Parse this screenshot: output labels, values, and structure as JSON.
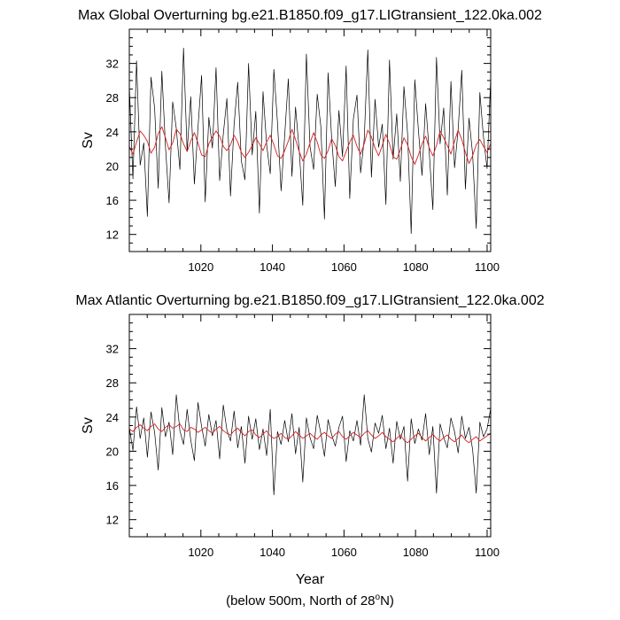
{
  "chart_data": [
    {
      "type": "line",
      "title": "Max Global Overturning bg.e21.B1850.f09_g17.LIGtransient_122.0ka.002",
      "ylabel": "Sv",
      "xlabel": "",
      "xlim": [
        1000,
        1101
      ],
      "ylim": [
        10,
        36
      ],
      "xticks": [
        1020,
        1040,
        1060,
        1080,
        1100
      ],
      "yticks": [
        12,
        16,
        20,
        24,
        28,
        32
      ],
      "x_start": 1000,
      "x_end": 1101,
      "series": [
        {
          "name": "annual",
          "color": "#000000",
          "values": [
            29.4,
            18.5,
            32.3,
            20.1,
            22.7,
            14.1,
            30.4,
            26.8,
            17.4,
            31.1,
            22.3,
            15.7,
            27.5,
            24.4,
            19.6,
            33.8,
            21.7,
            28.1,
            17.9,
            24.5,
            30.6,
            15.8,
            25.7,
            22.1,
            31.5,
            18.3,
            23.7,
            27.9,
            16.5,
            24.9,
            29.8,
            20.6,
            18.4,
            32.0,
            21.3,
            26.4,
            14.5,
            28.7,
            22.5,
            19.1,
            31.3,
            25.1,
            17.1,
            23.6,
            30.2,
            18.8,
            26.9,
            21.9,
            15.4,
            33.1,
            22.3,
            19.6,
            28.4,
            24.6,
            13.8,
            30.9,
            23.2,
            17.6,
            26.5,
            21.1,
            31.7,
            16.2,
            25.5,
            28.3,
            19.2,
            23.1,
            33.6,
            18.7,
            27.8,
            22.2,
            24.9,
            15.5,
            32.4,
            20.8,
            26.1,
            18.2,
            29.3,
            23.8,
            12.1,
            30.1,
            24.2,
            18.9,
            27.3,
            21.6,
            14.9,
            32.7,
            22.6,
            26.8,
            16.6,
            29.9,
            19.8,
            24.3,
            31.2,
            17.3,
            25.6,
            21.4,
            12.7,
            28.6,
            23.4,
            19.7,
            30.3
          ]
        },
        {
          "name": "smoothed",
          "color": "#d62020",
          "values": [
            22.3,
            21.4,
            22.8,
            24.1,
            23.6,
            22.9,
            21.5,
            22.2,
            23.8,
            24.6,
            23.3,
            21.9,
            22.7,
            24.3,
            23.8,
            22.6,
            21.7,
            22.9,
            23.9,
            22.7,
            21.3,
            21.1,
            22.6,
            23.4,
            24.1,
            23.5,
            22.3,
            21.8,
            22.5,
            23.6,
            22.8,
            21.6,
            21.0,
            21.6,
            22.4,
            23.3,
            22.6,
            21.8,
            22.8,
            23.6,
            22.5,
            21.2,
            20.9,
            21.8,
            22.9,
            24.3,
            23.1,
            21.7,
            20.6,
            21.4,
            22.7,
            23.9,
            22.8,
            21.3,
            20.9,
            21.8,
            23.2,
            22.4,
            21.1,
            20.6,
            21.7,
            22.8,
            23.6,
            22.3,
            21.4,
            22.6,
            24.2,
            23.4,
            22.1,
            21.2,
            22.4,
            23.7,
            22.6,
            21.1,
            20.8,
            21.9,
            23.3,
            22.5,
            21.1,
            20.2,
            21.3,
            22.6,
            23.5,
            22.1,
            21.2,
            22.4,
            24.1,
            23.3,
            22.4,
            21.4,
            22.9,
            24.2,
            23.1,
            21.6,
            20.3,
            21.2,
            22.5,
            23.1,
            22.3,
            21.6,
            22.6
          ]
        }
      ]
    },
    {
      "type": "line",
      "title": "Max Atlantic Overturning bg.e21.B1850.f09_g17.LIGtransient_122.0ka.002",
      "ylabel": "Sv",
      "xlabel": "Year",
      "xlim": [
        1000,
        1101
      ],
      "ylim": [
        10,
        36
      ],
      "xticks": [
        1020,
        1040,
        1060,
        1080,
        1100
      ],
      "yticks": [
        12,
        16,
        20,
        24,
        28,
        32
      ],
      "x_start": 1000,
      "x_end": 1101,
      "series": [
        {
          "name": "annual",
          "color": "#000000",
          "values": [
            22.8,
            20.1,
            25.2,
            21.5,
            23.9,
            19.3,
            24.6,
            22.2,
            17.8,
            25.1,
            21.7,
            23.4,
            19.6,
            26.6,
            22.4,
            20.8,
            24.9,
            21.3,
            18.9,
            25.7,
            22.9,
            20.6,
            24.3,
            21.8,
            23.6,
            19.1,
            25.4,
            22.5,
            21.2,
            24.7,
            20.4,
            22.9,
            18.6,
            24.1,
            21.4,
            23.8,
            20.2,
            22.6,
            19.5,
            24.9,
            14.9,
            22.3,
            20.8,
            23.6,
            21.1,
            24.4,
            19.7,
            22.8,
            16.4,
            23.9,
            21.6,
            20.3,
            24.2,
            22.1,
            19.4,
            23.7,
            21.9,
            20.6,
            22.8,
            24.1,
            18.8,
            22.4,
            21.2,
            23.6,
            20.7,
            26.6,
            21.5,
            19.9,
            23.3,
            22.1,
            24.2,
            20.3,
            22.7,
            18.6,
            23.5,
            21.4,
            22.9,
            16.5,
            23.8,
            20.9,
            22.6,
            21.3,
            24.4,
            19.6,
            22.9,
            15.1,
            23.2,
            21.6,
            20.4,
            23.9,
            22.3,
            19.8,
            24.1,
            21.5,
            22.8,
            20.2,
            15.1,
            23.4,
            21.7,
            22.6,
            25.0
          ]
        },
        {
          "name": "smoothed",
          "color": "#d62020",
          "values": [
            22.6,
            22.3,
            22.8,
            23.1,
            22.7,
            22.4,
            22.9,
            23.2,
            22.6,
            22.3,
            22.8,
            23.1,
            22.7,
            22.9,
            23.2,
            22.5,
            22.3,
            22.8,
            22.6,
            22.2,
            22.5,
            22.8,
            22.4,
            22.1,
            22.6,
            22.9,
            22.4,
            22.1,
            21.9,
            22.4,
            22.7,
            22.2,
            21.8,
            22.3,
            22.5,
            21.9,
            21.6,
            22.0,
            22.4,
            21.8,
            21.5,
            21.7,
            22.1,
            21.6,
            21.4,
            21.8,
            22.3,
            21.9,
            21.5,
            21.8,
            22.1,
            21.7,
            21.4,
            21.9,
            22.2,
            21.8,
            21.5,
            22.0,
            22.3,
            21.7,
            21.4,
            21.8,
            22.2,
            21.9,
            21.6,
            22.1,
            22.4,
            21.9,
            21.5,
            21.8,
            22.2,
            21.7,
            21.4,
            21.1,
            21.5,
            21.9,
            21.3,
            21.0,
            21.4,
            21.8,
            22.1,
            21.6,
            21.2,
            21.6,
            22.0,
            21.5,
            21.2,
            21.6,
            21.9,
            21.4,
            21.1,
            21.5,
            21.9,
            21.3,
            21.0,
            21.4,
            21.7,
            21.2,
            21.5,
            21.8,
            22.1
          ]
        }
      ]
    }
  ],
  "footnote": {
    "prefix": "(below 500m, North of 28",
    "superscript": "o",
    "suffix": "N)"
  }
}
